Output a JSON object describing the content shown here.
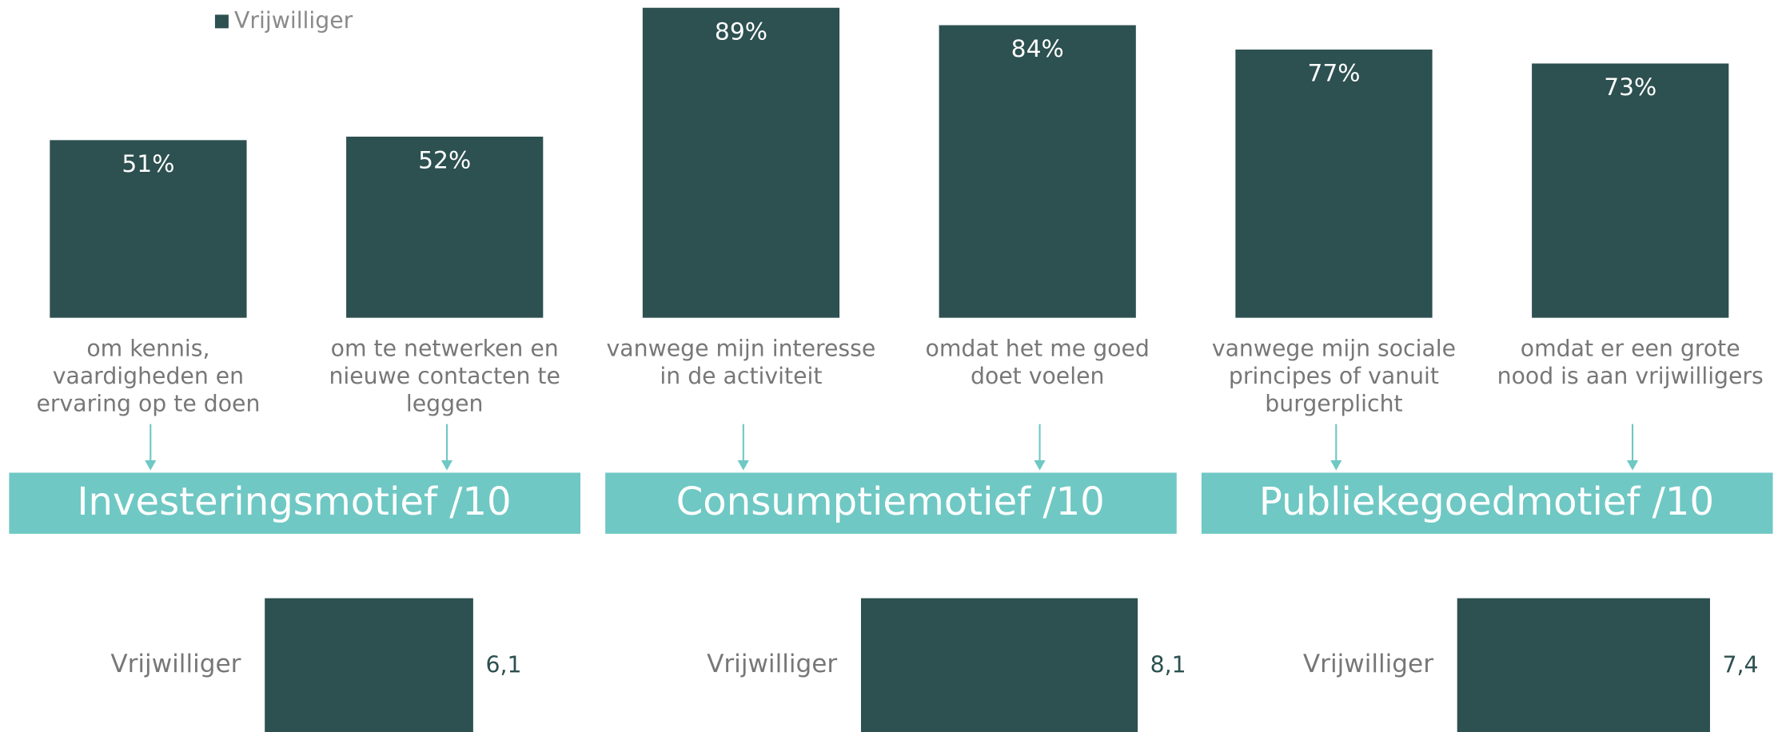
{
  "chart_data": [
    {
      "type": "bar",
      "categories": [
        "om kennis,\nvaardigheden en\nervaring op te doen",
        "om te netwerken en\nnieuwe contacten te\nleggen",
        "vanwege mijn interesse\nin de activiteit",
        "omdat het me goed\ndoet voelen",
        "vanwege mijn sociale\nprincipes of vanuit\nburgerplicht",
        "omdat er een grote\nnood is aan vrijwilligers"
      ],
      "series": [
        {
          "name": "Vrijwilliger",
          "color": "#2d5050",
          "values": [
            51,
            52,
            89,
            84,
            77,
            73
          ],
          "value_labels": [
            "51%",
            "52%",
            "89%",
            "84%",
            "77%",
            "73%"
          ]
        }
      ],
      "ylim": [
        0,
        100
      ],
      "legend": "top-left"
    },
    {
      "type": "hbar",
      "title": "Investeringsmotief /10",
      "categories": [
        "Vrijwilliger"
      ],
      "values": [
        6.1
      ],
      "value_labels": [
        "6,1"
      ],
      "color": "#2d5050",
      "xlim": [
        0,
        10
      ]
    },
    {
      "type": "hbar",
      "title": "Consumptiemotief /10",
      "categories": [
        "Vrijwilliger"
      ],
      "values": [
        8.1
      ],
      "value_labels": [
        "8,1"
      ],
      "color": "#2d5050",
      "xlim": [
        0,
        10
      ]
    },
    {
      "type": "hbar",
      "title": "Publiekegoedmotief /10",
      "categories": [
        "Vrijwilliger"
      ],
      "values": [
        7.4
      ],
      "value_labels": [
        "7,4"
      ],
      "color": "#2d5050",
      "xlim": [
        0,
        10
      ]
    }
  ]
}
